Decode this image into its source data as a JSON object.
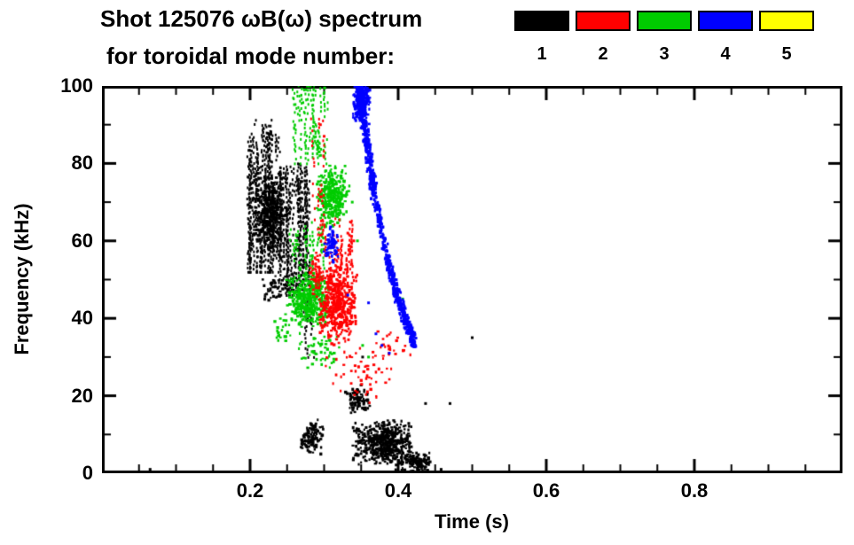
{
  "chart_data": {
    "type": "scatter",
    "title_line1": "Shot 125076 ωB(ω) spectrum",
    "title_line2": "for toroidal mode number:",
    "xlabel": "Time (s)",
    "ylabel": "Frequency (kHz)",
    "xlim": [
      0,
      1.0
    ],
    "ylim": [
      0,
      100
    ],
    "grid": false,
    "xticks": {
      "major": [
        0.2,
        0.4,
        0.6,
        0.8
      ],
      "labels": [
        "0.2",
        "0.4",
        "0.6",
        "0.8"
      ],
      "minor_step": 0.05
    },
    "yticks": {
      "major": [
        0,
        20,
        40,
        60,
        80,
        100
      ],
      "labels": [
        "0",
        "20",
        "40",
        "60",
        "80",
        "100"
      ],
      "minor_step": 10
    },
    "legend": {
      "position": "top-right",
      "items": [
        {
          "label": "1",
          "color": "#000000"
        },
        {
          "label": "2",
          "color": "#ff0000"
        },
        {
          "label": "3",
          "color": "#00cc00"
        },
        {
          "label": "4",
          "color": "#0000ff"
        },
        {
          "label": "5",
          "color": "#ffff00"
        }
      ]
    },
    "series": [
      {
        "name": "n=1",
        "color": "#000000",
        "clusters": [
          {
            "type": "streaks",
            "t": [
              0.197,
              0.243
            ],
            "f": [
              52,
              88
            ],
            "count": 110,
            "len": [
              4,
              16
            ]
          },
          {
            "type": "streaks",
            "t": [
              0.24,
              0.28
            ],
            "f": [
              46,
              80
            ],
            "count": 85,
            "len": [
              4,
              14
            ]
          },
          {
            "type": "blob",
            "t": [
              0.2,
              0.252
            ],
            "f": [
              57,
              78
            ],
            "count": 380
          },
          {
            "type": "streaks",
            "t": [
              0.2,
              0.238
            ],
            "f": [
              83,
              92
            ],
            "count": 14,
            "len": [
              2,
              5
            ]
          },
          {
            "type": "blob",
            "t": [
              0.212,
              0.252
            ],
            "f": [
              44,
              53
            ],
            "count": 50
          },
          {
            "type": "streaks",
            "t": [
              0.27,
              0.287
            ],
            "f": [
              30,
              48
            ],
            "count": 12,
            "len": [
              3,
              8
            ]
          },
          {
            "type": "blob",
            "t": [
              0.267,
              0.3
            ],
            "f": [
              4,
              14
            ],
            "count": 110
          },
          {
            "type": "blob",
            "t": [
              0.327,
              0.362
            ],
            "f": [
              15,
              23
            ],
            "count": 90
          },
          {
            "type": "blob",
            "t": [
              0.335,
              0.425
            ],
            "f": [
              2,
              14
            ],
            "count": 520
          },
          {
            "type": "blob",
            "t": [
              0.395,
              0.452
            ],
            "f": [
              0,
              6
            ],
            "count": 150
          },
          {
            "type": "dots",
            "points": [
              [
                0.065,
                1
              ],
              [
                0.5,
                35
              ],
              [
                0.47,
                18
              ],
              [
                0.437,
                18
              ],
              [
                0.43,
                2
              ],
              [
                0.458,
                1
              ],
              [
                0.352,
                30
              ]
            ]
          }
        ]
      },
      {
        "name": "n=2",
        "color": "#ff0000",
        "clusters": [
          {
            "type": "blob",
            "t": [
              0.29,
              0.345
            ],
            "f": [
              33,
              55
            ],
            "count": 470
          },
          {
            "type": "blob",
            "t": [
              0.278,
              0.297
            ],
            "f": [
              45,
              58
            ],
            "count": 45
          },
          {
            "type": "streaks",
            "t": [
              0.29,
              0.338
            ],
            "f": [
              50,
              66
            ],
            "count": 40,
            "len": [
              3,
              8
            ]
          },
          {
            "type": "streaks",
            "t": [
              0.283,
              0.302
            ],
            "f": [
              60,
              92
            ],
            "count": 18,
            "len": [
              2,
              5
            ]
          },
          {
            "type": "blob",
            "t": [
              0.3,
              0.4
            ],
            "f": [
              18,
              33
            ],
            "count": 55
          },
          {
            "type": "blob",
            "t": [
              0.35,
              0.42
            ],
            "f": [
              29,
              38
            ],
            "count": 28
          },
          {
            "type": "dots",
            "points": [
              [
                0.332,
                62
              ],
              [
                0.34,
                60
              ],
              [
                0.295,
                90
              ],
              [
                0.3,
                87
              ]
            ]
          }
        ]
      },
      {
        "name": "n=3",
        "color": "#00cc00",
        "clusters": [
          {
            "type": "blob",
            "t": [
              0.248,
              0.308
            ],
            "f": [
              37,
              53
            ],
            "count": 430
          },
          {
            "type": "blob",
            "t": [
              0.287,
              0.335
            ],
            "f": [
              63,
              80
            ],
            "count": 310
          },
          {
            "type": "streaks",
            "t": [
              0.255,
              0.305
            ],
            "f": [
              80,
              101
            ],
            "count": 45,
            "len": [
              3,
              10
            ]
          },
          {
            "type": "streaks",
            "t": [
              0.25,
              0.3
            ],
            "f": [
              53,
              65
            ],
            "count": 30,
            "len": [
              2,
              6
            ]
          },
          {
            "type": "blob",
            "t": [
              0.26,
              0.33
            ],
            "f": [
              25,
              37
            ],
            "count": 55
          },
          {
            "type": "blob",
            "t": [
              0.23,
              0.256
            ],
            "f": [
              30,
              42
            ],
            "count": 25
          },
          {
            "type": "dots",
            "points": [
              [
                0.4,
                47
              ],
              [
                0.406,
                45
              ],
              [
                0.345,
                60
              ],
              [
                0.352,
                33
              ],
              [
                0.36,
                30
              ],
              [
                0.338,
                70
              ]
            ]
          }
        ]
      },
      {
        "name": "n=4",
        "color": "#0000ff",
        "clusters": [
          {
            "type": "curve",
            "points": [
              [
                0.347,
                101
              ],
              [
                0.352,
                93
              ],
              [
                0.357,
                86
              ],
              [
                0.362,
                79
              ],
              [
                0.367,
                73
              ]
            ],
            "count": 360,
            "tj": 0.008,
            "fj": 5
          },
          {
            "type": "curve",
            "points": [
              [
                0.367,
                73
              ],
              [
                0.372,
                68
              ],
              [
                0.378,
                62
              ],
              [
                0.385,
                56
              ]
            ],
            "count": 130,
            "tj": 0.006,
            "fj": 4
          },
          {
            "type": "curve",
            "points": [
              [
                0.385,
                56
              ],
              [
                0.392,
                50
              ],
              [
                0.398,
                46
              ],
              [
                0.404,
                43
              ],
              [
                0.41,
                39
              ],
              [
                0.417,
                36
              ],
              [
                0.422,
                34
              ]
            ],
            "count": 380,
            "tj": 0.006,
            "fj": 4
          },
          {
            "type": "blob",
            "t": [
              0.338,
              0.362
            ],
            "f": [
              90,
              102
            ],
            "count": 260
          },
          {
            "type": "blob",
            "t": [
              0.298,
              0.322
            ],
            "f": [
              54,
              64
            ],
            "count": 75
          },
          {
            "type": "dots",
            "points": [
              [
                0.37,
                36
              ],
              [
                0.378,
                33
              ],
              [
                0.388,
                31
              ],
              [
                0.36,
                44
              ],
              [
                0.332,
                46
              ]
            ]
          }
        ]
      },
      {
        "name": "n=5",
        "color": "#ffff00",
        "clusters": []
      }
    ]
  }
}
